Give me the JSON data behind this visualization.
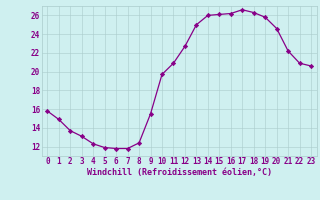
{
  "x": [
    0,
    1,
    2,
    3,
    4,
    5,
    6,
    7,
    8,
    9,
    10,
    11,
    12,
    13,
    14,
    15,
    16,
    17,
    18,
    19,
    20,
    21,
    22,
    23
  ],
  "y": [
    15.8,
    14.9,
    13.7,
    13.1,
    12.3,
    11.9,
    11.8,
    11.8,
    12.4,
    15.5,
    19.7,
    20.9,
    22.7,
    25.0,
    26.0,
    26.1,
    26.2,
    26.6,
    26.3,
    25.8,
    24.6,
    22.2,
    20.9,
    20.6
  ],
  "line_color": "#880088",
  "marker": "D",
  "marker_size": 2.2,
  "bg_color": "#cff0f0",
  "grid_color": "#aacccc",
  "xlabel": "Windchill (Refroidissement éolien,°C)",
  "ylim": [
    11,
    27
  ],
  "xlim": [
    -0.5,
    23.5
  ],
  "yticks": [
    12,
    14,
    16,
    18,
    20,
    22,
    24,
    26
  ],
  "xticks": [
    0,
    1,
    2,
    3,
    4,
    5,
    6,
    7,
    8,
    9,
    10,
    11,
    12,
    13,
    14,
    15,
    16,
    17,
    18,
    19,
    20,
    21,
    22,
    23
  ],
  "font_color": "#880088",
  "tick_fontsize": 5.5,
  "xlabel_fontsize": 6.0
}
